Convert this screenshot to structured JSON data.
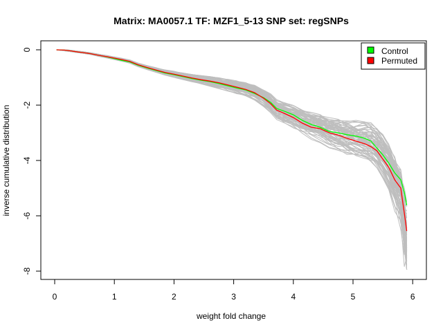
{
  "chart_data": {
    "type": "line",
    "title": "Matrix: MA0057.1 TF: MZF1_5-13 SNP set: regSNPs",
    "xlabel": "weight fold change",
    "ylabel": "inverse cumulative distribution",
    "xlim": [
      0,
      6
    ],
    "ylim": [
      -8,
      0
    ],
    "xticks": [
      0,
      1,
      2,
      3,
      4,
      5,
      6
    ],
    "yticks": [
      0,
      -2,
      -4,
      -6,
      -8
    ],
    "legend_position": "top-right",
    "legend": [
      {
        "label": "Control",
        "color": "#00ff00"
      },
      {
        "label": "Permuted",
        "color": "#ff0000"
      }
    ],
    "background_series_color": "#bebebe",
    "series": [
      {
        "name": "Control",
        "color": "#00ff00",
        "x": [
          0.03,
          0.16,
          0.27,
          0.36,
          0.47,
          0.6,
          0.74,
          0.88,
          1.0,
          1.12,
          1.26,
          1.4,
          1.55,
          1.7,
          1.85,
          2.0,
          2.15,
          2.3,
          2.45,
          2.6,
          2.75,
          2.9,
          3.05,
          3.2,
          3.35,
          3.5,
          3.62,
          3.72,
          3.85,
          4.0,
          4.15,
          4.3,
          4.45,
          4.6,
          4.75,
          4.9,
          5.05,
          5.2,
          5.3,
          5.4,
          5.5,
          5.6,
          5.7,
          5.8,
          5.86,
          5.9
        ],
        "values": [
          0.0,
          -0.01,
          -0.04,
          -0.07,
          -0.1,
          -0.14,
          -0.2,
          -0.26,
          -0.32,
          -0.38,
          -0.44,
          -0.56,
          -0.66,
          -0.75,
          -0.84,
          -0.9,
          -0.97,
          -1.04,
          -1.1,
          -1.15,
          -1.22,
          -1.3,
          -1.38,
          -1.45,
          -1.58,
          -1.73,
          -1.9,
          -2.12,
          -2.22,
          -2.35,
          -2.55,
          -2.7,
          -2.8,
          -2.95,
          -3.0,
          -3.07,
          -3.12,
          -3.2,
          -3.3,
          -3.55,
          -3.8,
          -4.1,
          -4.45,
          -4.7,
          -5.15,
          -5.62
        ]
      },
      {
        "name": "Permuted",
        "color": "#ff0000",
        "x": [
          0.03,
          0.16,
          0.27,
          0.36,
          0.47,
          0.6,
          0.74,
          0.88,
          1.0,
          1.12,
          1.26,
          1.4,
          1.55,
          1.7,
          1.85,
          2.0,
          2.15,
          2.3,
          2.45,
          2.6,
          2.75,
          2.9,
          3.05,
          3.2,
          3.35,
          3.5,
          3.62,
          3.72,
          3.85,
          4.0,
          4.15,
          4.3,
          4.45,
          4.6,
          4.75,
          4.9,
          5.05,
          5.2,
          5.3,
          5.4,
          5.5,
          5.6,
          5.7,
          5.8,
          5.86,
          5.9
        ],
        "values": [
          0.0,
          -0.01,
          -0.04,
          -0.07,
          -0.1,
          -0.14,
          -0.2,
          -0.25,
          -0.3,
          -0.35,
          -0.42,
          -0.54,
          -0.64,
          -0.73,
          -0.82,
          -0.88,
          -0.95,
          -1.02,
          -1.08,
          -1.13,
          -1.19,
          -1.27,
          -1.35,
          -1.43,
          -1.55,
          -1.75,
          -1.95,
          -2.18,
          -2.3,
          -2.45,
          -2.65,
          -2.8,
          -2.85,
          -3.0,
          -3.08,
          -3.2,
          -3.3,
          -3.4,
          -3.5,
          -3.65,
          -3.95,
          -4.25,
          -4.7,
          -5.0,
          -5.9,
          -6.55
        ]
      }
    ]
  }
}
